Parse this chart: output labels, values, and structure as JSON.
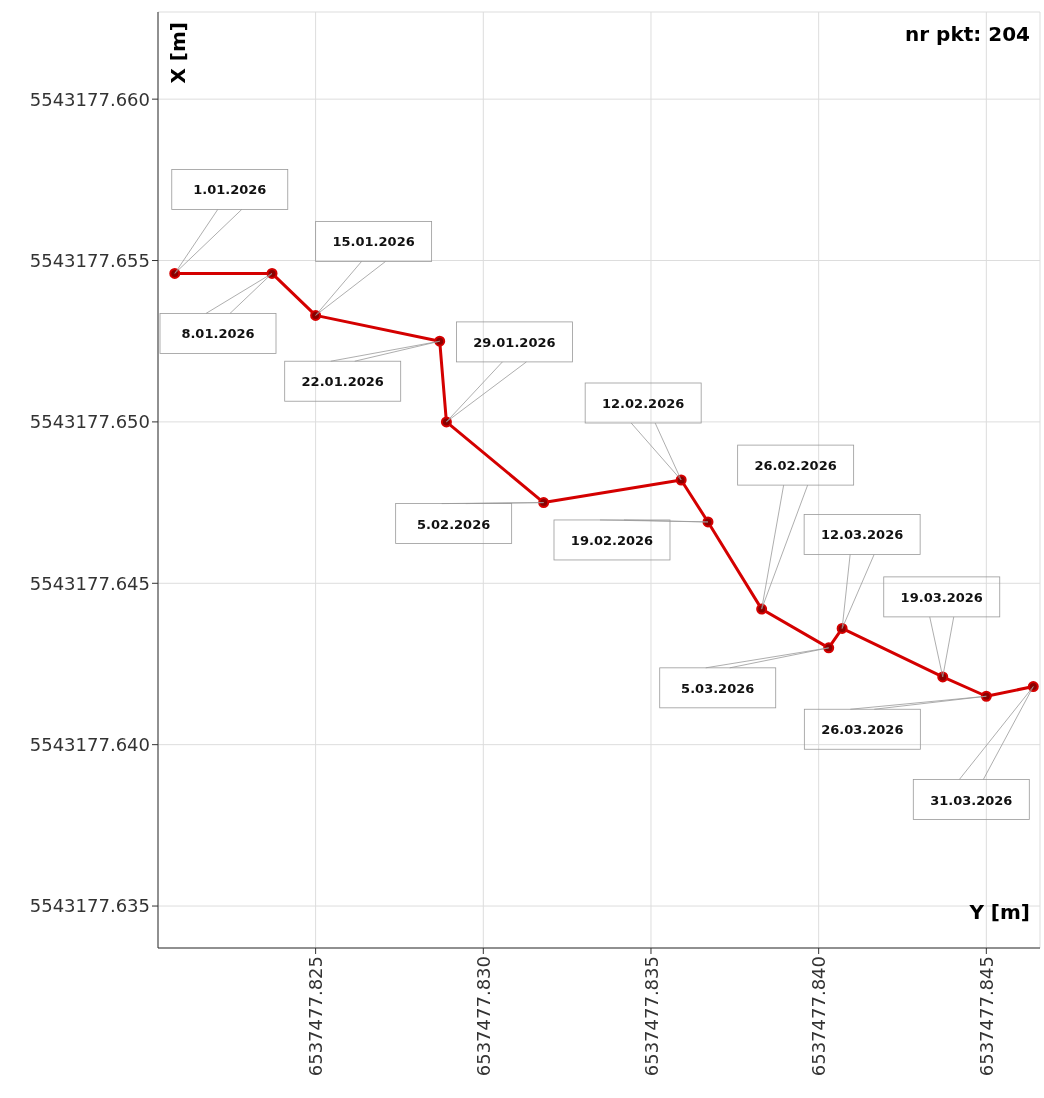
{
  "chart_data": {
    "type": "line",
    "xlabel": "Y [m]",
    "ylabel": "X [m]",
    "x": [
      6537477.8208,
      6537477.8237,
      6537477.825,
      6537477.8287,
      6537477.8289,
      6537477.8318,
      6537477.8359,
      6537477.8367,
      6537477.8383,
      6537477.8403,
      6537477.8407,
      6537477.8437,
      6537477.845,
      6537477.8464
    ],
    "series": [
      {
        "color": "#d40000",
        "values": [
          5543177.6546,
          5543177.6546,
          5543177.6533,
          5543177.6525,
          5543177.65,
          5543177.6475,
          5543177.6482,
          5543177.6469,
          5543177.6442,
          5543177.643,
          5543177.6436,
          5543177.6421,
          5543177.6415,
          5543177.6418
        ]
      }
    ],
    "xlim": [
      6537477.8203,
      6537477.8466
    ],
    "ylim": [
      5543177.6337,
      5543177.6627
    ],
    "xticks": [
      6537477.825,
      {
        "value": 6537477.83,
        "label": "6537477.830"
      },
      6537477.835,
      {
        "value": 6537477.84,
        "label": "6537477.840"
      },
      6537477.845
    ],
    "yticks": [
      5543177.635,
      {
        "value": 5543177.64,
        "label": "5543177.640"
      },
      5543177.645,
      {
        "value": 5543177.65,
        "label": "5543177.650"
      },
      5543177.655,
      {
        "value": 5543177.66,
        "label": "5543177.660"
      }
    ],
    "grid": true,
    "marker": "circle",
    "annotations": [
      {
        "text": "1.01.2026",
        "x": 6537477.8208,
        "y": 5543177.6546
      },
      {
        "text": "8.01.2026",
        "x": 6537477.8237,
        "y": 5543177.6546
      },
      {
        "text": "15.01.2026",
        "x": 6537477.825,
        "y": 5543177.6533
      },
      {
        "text": "22.01.2026",
        "x": 6537477.8287,
        "y": 5543177.6525
      },
      {
        "text": "29.01.2026",
        "x": 6537477.8289,
        "y": 5543177.65
      },
      {
        "text": "5.02.2026",
        "x": 6537477.8318,
        "y": 5543177.6475
      },
      {
        "text": "12.02.2026",
        "x": 6537477.8359,
        "y": 5543177.6482
      },
      {
        "text": "19.02.2026",
        "x": 6537477.8367,
        "y": 5543177.6469
      },
      {
        "text": "26.02.2026",
        "x": 6537477.8383,
        "y": 5543177.6442
      },
      {
        "text": "5.03.2026",
        "x": 6537477.8403,
        "y": 5543177.643
      },
      {
        "text": "12.03.2026",
        "x": 6537477.8407,
        "y": 5543177.6436
      },
      {
        "text": "19.03.2026",
        "x": 6537477.8437,
        "y": 5543177.6421
      },
      {
        "text": "26.03.2026",
        "x": 6537477.845,
        "y": 5543177.6415
      },
      {
        "text": "31.03.2026",
        "x": 6537477.8464,
        "y": 5543177.6418
      },
      "nr pkt: 204"
    ]
  }
}
